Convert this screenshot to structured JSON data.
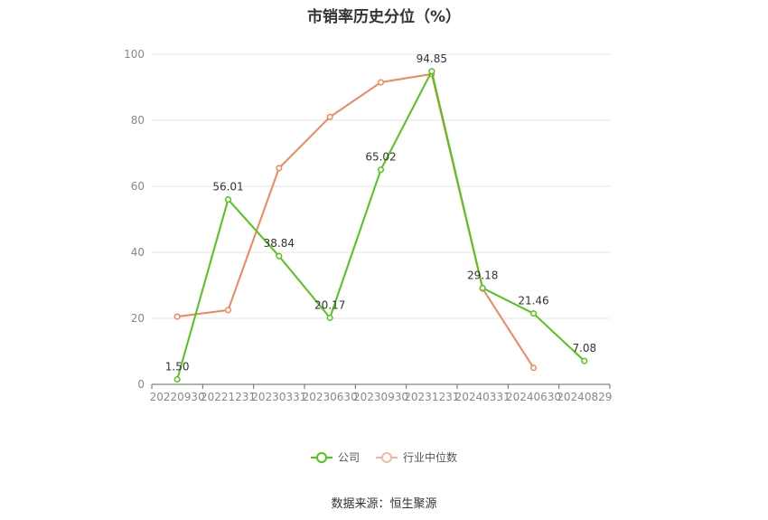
{
  "chart_data": {
    "type": "line",
    "title": "市销率历史分位（%）",
    "categories": [
      "20220930",
      "20221231",
      "20230331",
      "20230630",
      "20230930",
      "20231231",
      "20240331",
      "20240630",
      "20240829"
    ],
    "ylim": [
      0,
      100
    ],
    "yticks": [
      0,
      20,
      40,
      60,
      80,
      100
    ],
    "grid": true,
    "legend_position": "bottom",
    "series": [
      {
        "name": "公司",
        "color": "#52c41a",
        "values": [
          1.5,
          56.01,
          38.84,
          20.17,
          65.02,
          94.85,
          29.18,
          21.46,
          7.08
        ],
        "labels": [
          "1.50",
          "56.01",
          "38.84",
          "20.17",
          "65.02",
          "94.85",
          "29.18",
          "21.46",
          "7.08"
        ]
      },
      {
        "name": "行业中位数",
        "color": "#f0875a",
        "values": [
          20.5,
          22.5,
          65.5,
          81.0,
          91.5,
          94.0,
          29.0,
          5.0,
          null
        ]
      }
    ]
  },
  "source": "数据来源：恒生聚源"
}
